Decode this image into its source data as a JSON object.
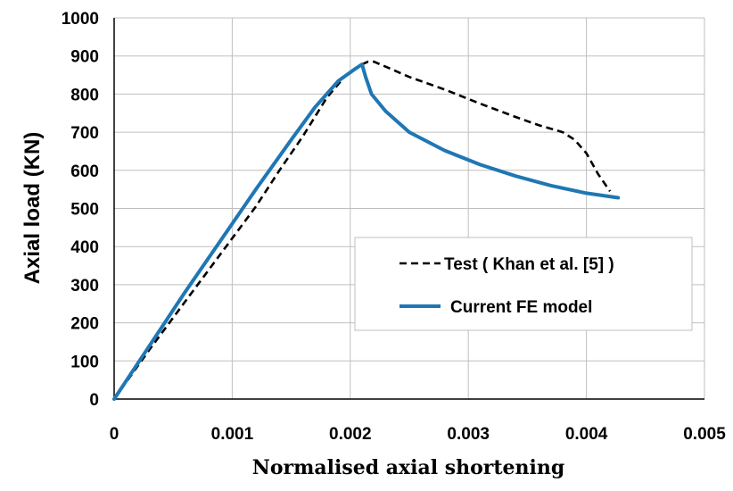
{
  "chart_data": {
    "type": "line",
    "title": "",
    "xlabel": "Normalised axial shortening",
    "ylabel": "Axial load (KN)",
    "xlim": [
      0,
      0.005
    ],
    "ylim": [
      0,
      1000
    ],
    "x_ticks": [
      0,
      0.001,
      0.002,
      0.003,
      0.004,
      0.005
    ],
    "x_tick_labels": [
      "0",
      "0.001",
      "0.002",
      "0.003",
      "0.004",
      "0.005"
    ],
    "y_ticks": [
      0,
      100,
      200,
      300,
      400,
      500,
      600,
      700,
      800,
      900,
      1000
    ],
    "y_tick_labels": [
      "0",
      "100",
      "200",
      "300",
      "400",
      "500",
      "600",
      "700",
      "800",
      "900",
      "1000"
    ],
    "grid": true,
    "legend_position": "right",
    "series": [
      {
        "name": "Test ( Khan et al. [5] )",
        "color": "#000000",
        "style": "dashed",
        "x": [
          0,
          0.0003,
          0.0006,
          0.0009,
          0.0012,
          0.0014,
          0.0016,
          0.0018,
          0.00195,
          0.0021,
          0.00215,
          0.0022,
          0.0023,
          0.0025,
          0.0028,
          0.0031,
          0.0034,
          0.0036,
          0.0038,
          0.0039,
          0.004,
          0.0041,
          0.0042
        ],
        "y": [
          0,
          130,
          255,
          380,
          505,
          600,
          690,
          790,
          845,
          878,
          885,
          885,
          872,
          845,
          812,
          775,
          740,
          718,
          700,
          680,
          645,
          590,
          545
        ]
      },
      {
        "name": "Current FE model",
        "color": "#1f77b4",
        "style": "solid",
        "x": [
          0,
          0.0003,
          0.0006,
          0.0009,
          0.0012,
          0.0015,
          0.0017,
          0.0019,
          0.00205,
          0.0021,
          0.00213,
          0.00218,
          0.0023,
          0.0025,
          0.0028,
          0.0031,
          0.0034,
          0.0037,
          0.004,
          0.00427
        ],
        "y": [
          0,
          140,
          280,
          415,
          550,
          680,
          765,
          835,
          868,
          878,
          845,
          800,
          755,
          700,
          652,
          615,
          585,
          560,
          540,
          528
        ]
      }
    ]
  }
}
